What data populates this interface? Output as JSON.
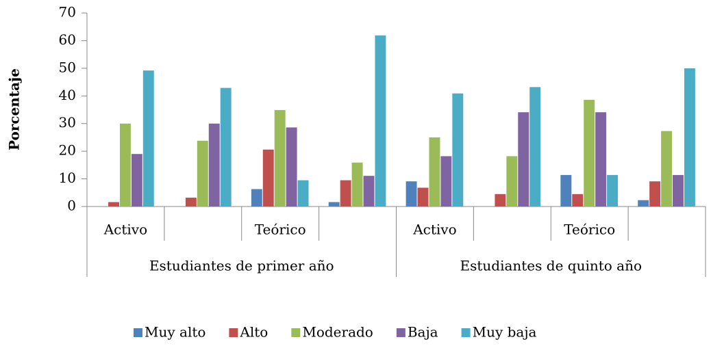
{
  "chart_data": {
    "type": "bar",
    "y_label": "Porcentaje",
    "categories": [
      "Activo",
      null,
      "Teórico",
      null,
      "Activo",
      null,
      "Teórico",
      null
    ],
    "groups": [
      "Estudiantes de primer año",
      "Estudiantes de quinto año"
    ],
    "series": [
      {
        "name": "Muy alto",
        "color": "#4f81bd",
        "values": [
          0,
          0,
          6.3,
          1.6,
          9.1,
          0,
          11.4,
          2.3
        ]
      },
      {
        "name": "Alto",
        "color": "#c0504d",
        "values": [
          1.6,
          3.2,
          20.6,
          9.5,
          6.8,
          4.5,
          4.5,
          9.1
        ]
      },
      {
        "name": "Moderado",
        "color": "#9bbb59",
        "values": [
          30,
          23.8,
          34.9,
          15.9,
          25,
          18.2,
          38.6,
          27.3
        ]
      },
      {
        "name": "Baja",
        "color": "#8064a2",
        "values": [
          19,
          30,
          28.6,
          11.1,
          18.2,
          34.1,
          34.1,
          11.4
        ]
      },
      {
        "name": "Muy baja",
        "color": "#4bacc6",
        "values": [
          49.2,
          42.9,
          9.5,
          61.9,
          40.9,
          43.2,
          11.4,
          50
        ]
      }
    ],
    "ylim": [
      0,
      70
    ],
    "yticks": [
      0,
      10,
      20,
      30,
      40,
      50,
      60,
      70
    ],
    "grid": false,
    "legend": "bottom"
  }
}
